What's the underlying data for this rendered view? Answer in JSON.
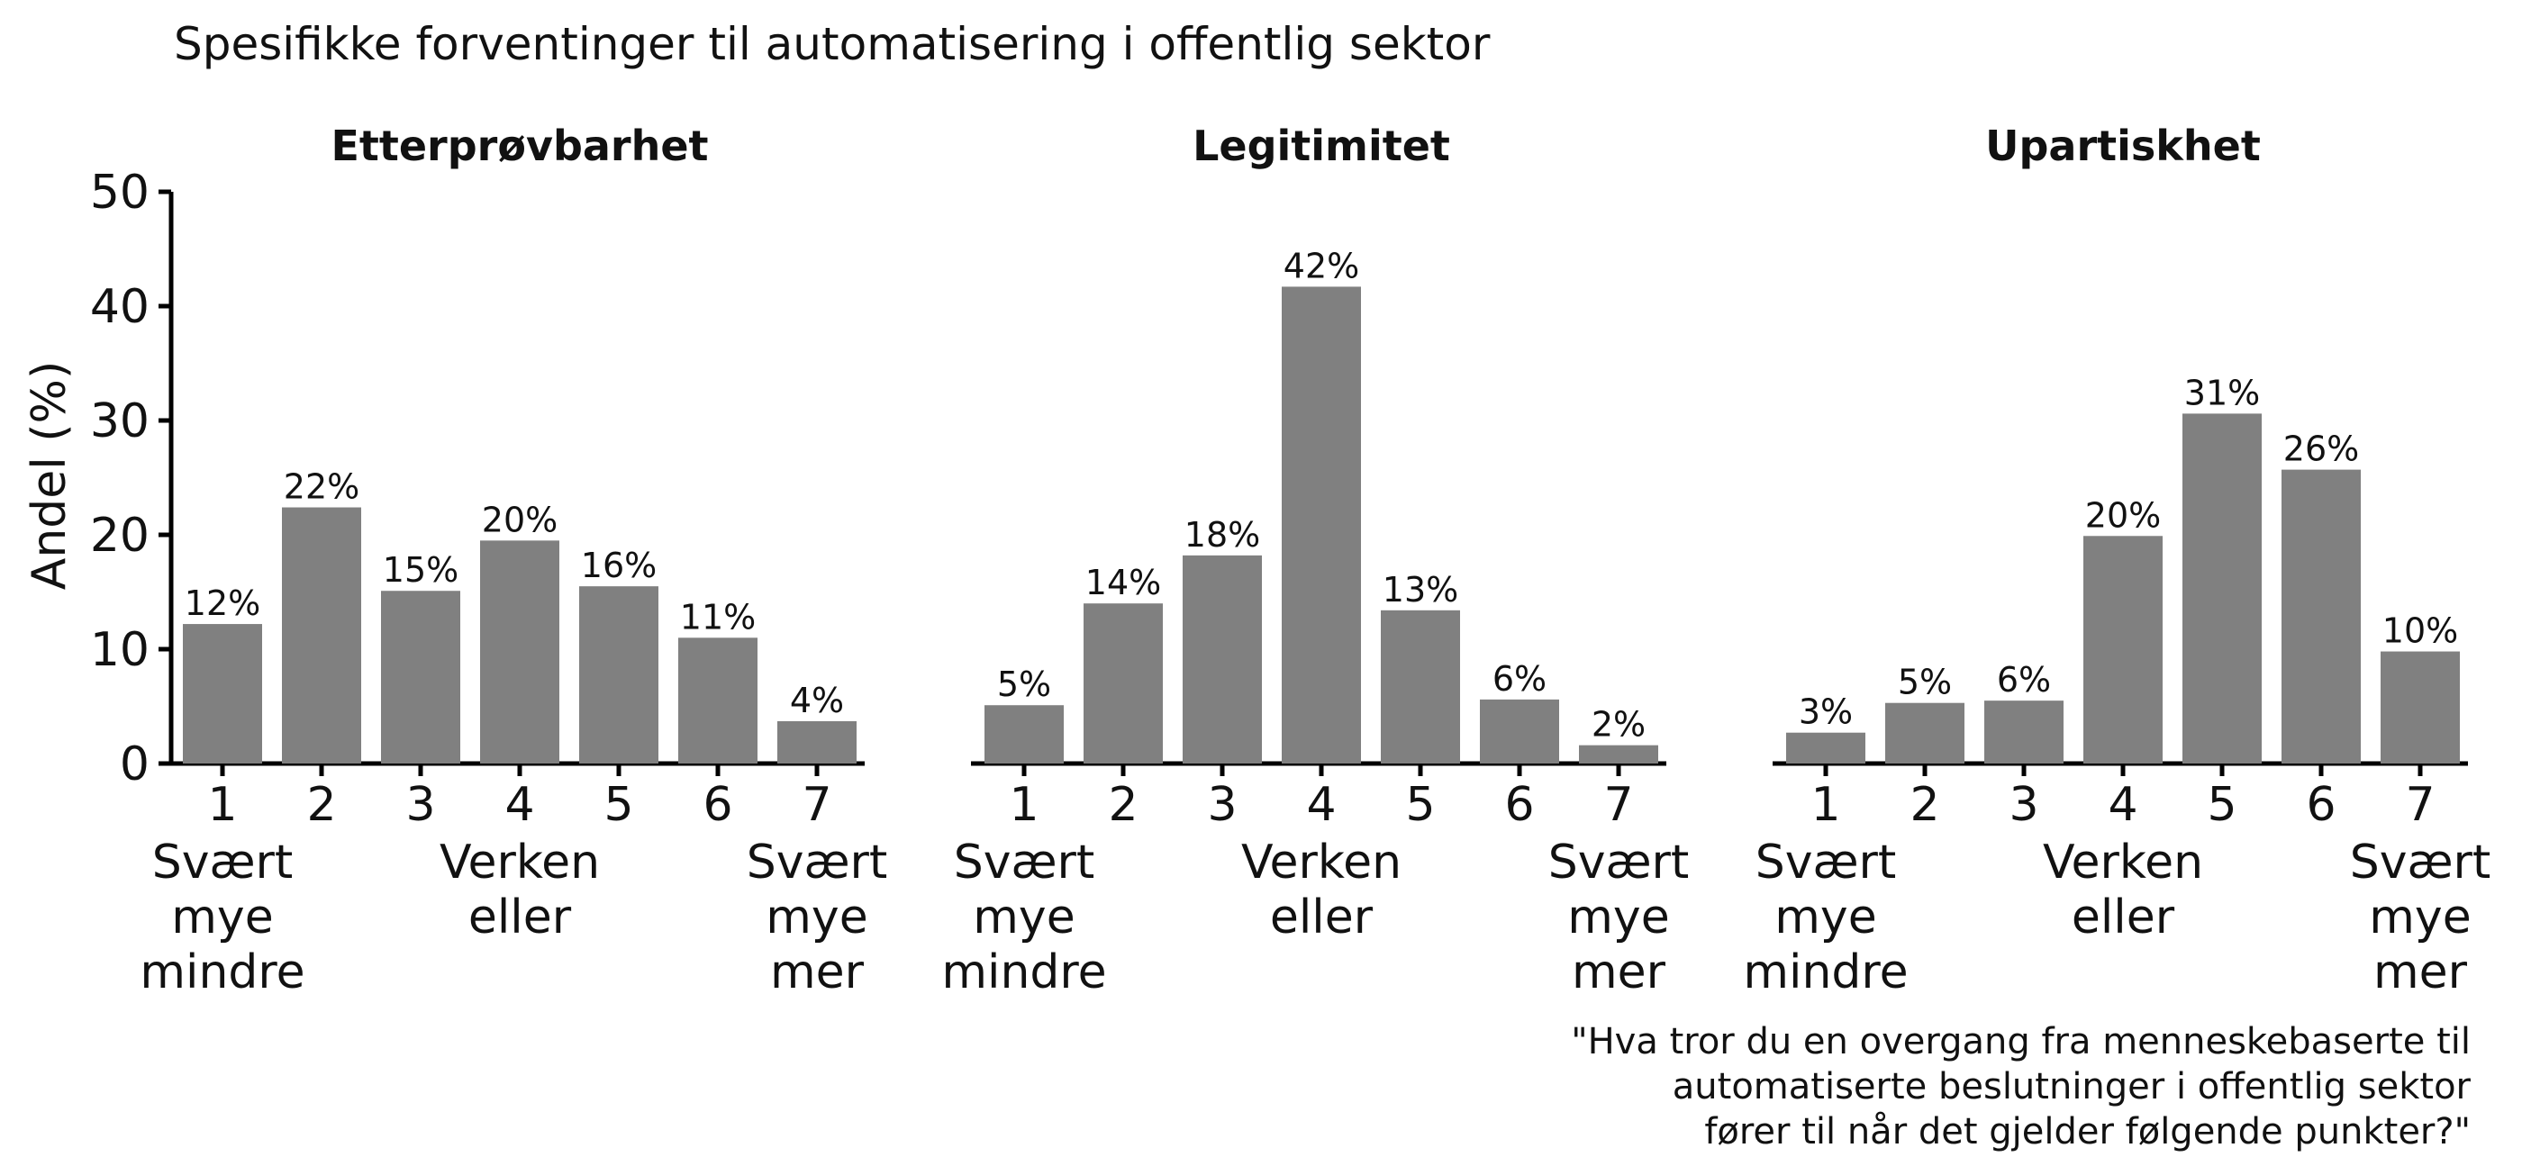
{
  "chart_data": {
    "type": "bar",
    "title": "Spesifikke forventinger til automatisering i offentlig sektor",
    "ylabel": "Andel (%)",
    "ylim": [
      0,
      50
    ],
    "yticks": [
      0,
      10,
      20,
      30,
      40,
      50
    ],
    "grid": false,
    "bar_color": "#808080",
    "categories": [
      "1",
      "2",
      "3",
      "4",
      "5",
      "6",
      "7"
    ],
    "scale_anchors": {
      "1": [
        "Svært",
        "mye",
        "mindre"
      ],
      "4": [
        "Verken",
        "eller"
      ],
      "7": [
        "Svært",
        "mye",
        "mer"
      ]
    },
    "panels": [
      {
        "name": "Etterprøvbarhet",
        "values": [
          12.2,
          22.4,
          15.1,
          19.5,
          15.5,
          11.0,
          3.7
        ],
        "labels": [
          "12%",
          "22%",
          "15%",
          "20%",
          "16%",
          "11%",
          "4%"
        ]
      },
      {
        "name": "Legitimitet",
        "values": [
          5.1,
          14.0,
          18.2,
          41.7,
          13.4,
          5.6,
          1.6
        ],
        "labels": [
          "5%",
          "14%",
          "18%",
          "42%",
          "13%",
          "6%",
          "2%"
        ]
      },
      {
        "name": "Upartiskhet",
        "values": [
          2.7,
          5.3,
          5.5,
          19.9,
          30.6,
          25.7,
          9.8
        ],
        "labels": [
          "3%",
          "5%",
          "6%",
          "20%",
          "31%",
          "26%",
          "10%"
        ]
      }
    ],
    "caption": [
      "\"Hva tror du en overgang fra menneskebaserte til",
      "automatiserte beslutninger i offentlig sektor",
      "fører til når det gjelder følgende punkter?\""
    ]
  }
}
